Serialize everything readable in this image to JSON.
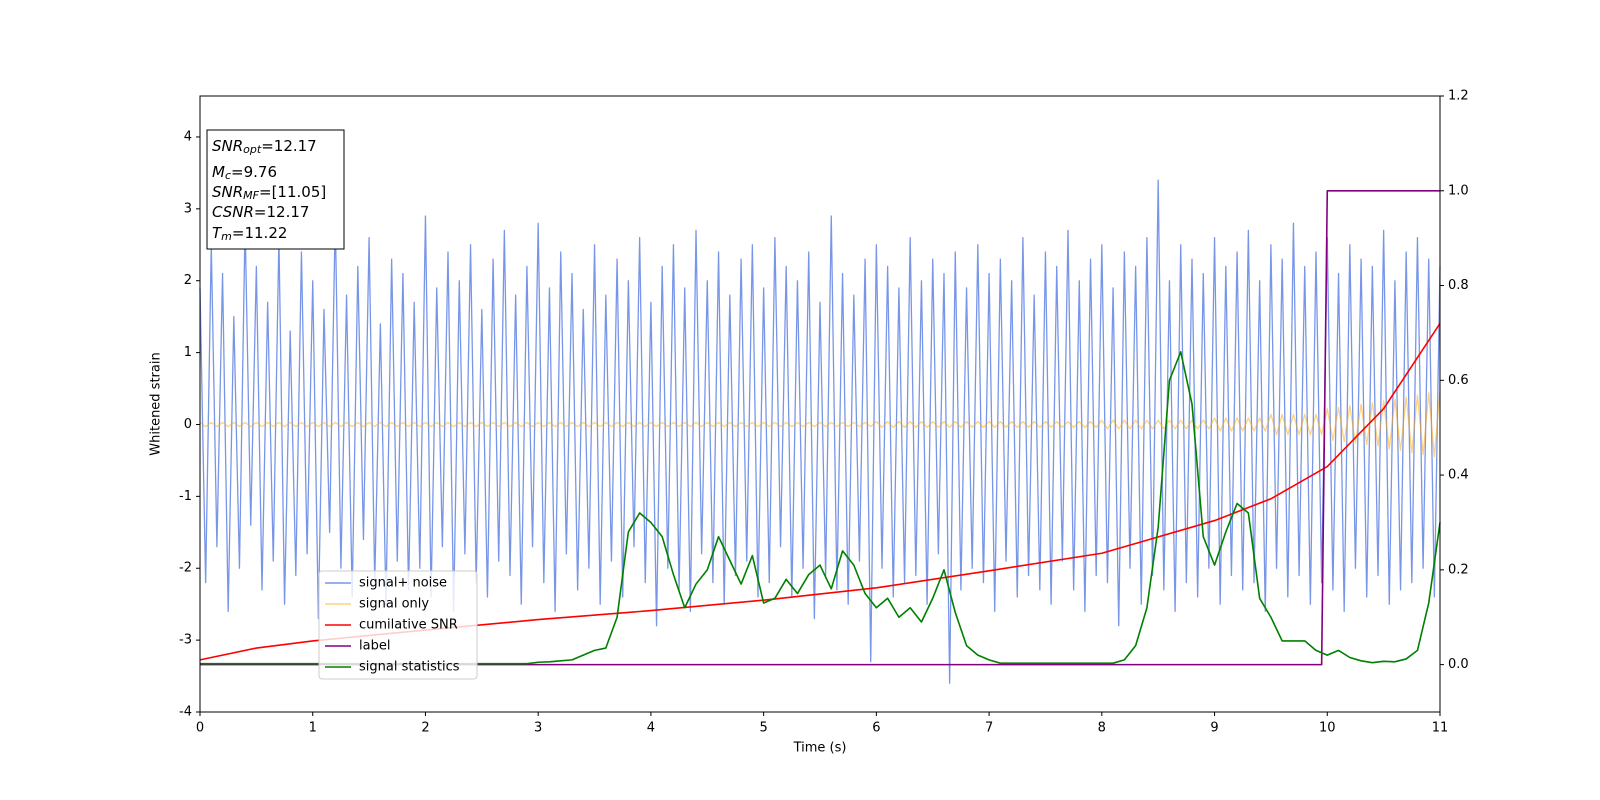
{
  "chart_data": {
    "type": "line",
    "xlabel": "Time (s)",
    "ylabel": "Whitened strain",
    "xlim": [
      0,
      11
    ],
    "xticks": [
      0,
      1,
      2,
      3,
      4,
      5,
      6,
      7,
      8,
      9,
      10,
      11
    ],
    "ylim": [
      -4,
      4.57
    ],
    "yticks": [
      -4,
      -3,
      -2,
      -1,
      0,
      1,
      2,
      3,
      4
    ],
    "y2lim": [
      -0.1,
      1.2
    ],
    "y2ticks": [
      {
        "value": 0,
        "label": "0.0"
      },
      {
        "value": 0.2,
        "label": "0.2"
      },
      {
        "value": 0.4,
        "label": "0.4"
      },
      {
        "value": 0.6,
        "label": "0.6"
      },
      {
        "value": 0.8,
        "label": "0.8"
      },
      {
        "value": 1,
        "label": "1.0"
      },
      {
        "value": 1.2,
        "label": "1.2"
      }
    ],
    "legend": "lower left",
    "annotations": [
      {
        "text": "SNR",
        "sub": "opt",
        "rest": "=12.17"
      },
      {
        "text": "M",
        "sub": "c",
        "rest": "=9.76"
      },
      {
        "text": "SNR",
        "sub": "MF",
        "rest": "=[11.05]"
      },
      {
        "text": "CSNR",
        "rest": "=12.17"
      },
      {
        "text": "T",
        "sub": "m",
        "rest": "=11.22"
      }
    ],
    "x": [
      0,
      0.05,
      0.1,
      0.15,
      0.2,
      0.25,
      0.3,
      0.35,
      0.4,
      0.45,
      0.5,
      0.55,
      0.6,
      0.65,
      0.7,
      0.75,
      0.8,
      0.85,
      0.9,
      0.95,
      1,
      1.05,
      1.1,
      1.15,
      1.2,
      1.25,
      1.3,
      1.35,
      1.4,
      1.45,
      1.5,
      1.55,
      1.6,
      1.65,
      1.7,
      1.75,
      1.8,
      1.85,
      1.9,
      1.95,
      2,
      2.05,
      2.1,
      2.15,
      2.2,
      2.25,
      2.3,
      2.35,
      2.4,
      2.45,
      2.5,
      2.55,
      2.6,
      2.65,
      2.7,
      2.75,
      2.8,
      2.85,
      2.9,
      2.95,
      3,
      3.05,
      3.1,
      3.15,
      3.2,
      3.25,
      3.3,
      3.35,
      3.4,
      3.45,
      3.5,
      3.55,
      3.6,
      3.65,
      3.7,
      3.75,
      3.8,
      3.85,
      3.9,
      3.95,
      4,
      4.05,
      4.1,
      4.15,
      4.2,
      4.25,
      4.3,
      4.35,
      4.4,
      4.45,
      4.5,
      4.55,
      4.6,
      4.65,
      4.7,
      4.75,
      4.8,
      4.85,
      4.9,
      4.95,
      5,
      5.05,
      5.1,
      5.15,
      5.2,
      5.25,
      5.3,
      5.35,
      5.4,
      5.45,
      5.5,
      5.55,
      5.6,
      5.65,
      5.7,
      5.75,
      5.8,
      5.85,
      5.9,
      5.95,
      6,
      6.05,
      6.1,
      6.15,
      6.2,
      6.25,
      6.3,
      6.35,
      6.4,
      6.45,
      6.5,
      6.55,
      6.6,
      6.65,
      6.7,
      6.75,
      6.8,
      6.85,
      6.9,
      6.95,
      7,
      7.05,
      7.1,
      7.15,
      7.2,
      7.25,
      7.3,
      7.35,
      7.4,
      7.45,
      7.5,
      7.55,
      7.6,
      7.65,
      7.7,
      7.75,
      7.8,
      7.85,
      7.9,
      7.95,
      8,
      8.05,
      8.1,
      8.15,
      8.2,
      8.25,
      8.3,
      8.35,
      8.4,
      8.45,
      8.5,
      8.55,
      8.6,
      8.65,
      8.7,
      8.75,
      8.8,
      8.85,
      8.9,
      8.95,
      9,
      9.05,
      9.1,
      9.15,
      9.2,
      9.25,
      9.3,
      9.35,
      9.4,
      9.45,
      9.5,
      9.55,
      9.6,
      9.65,
      9.7,
      9.75,
      9.8,
      9.85,
      9.9,
      9.95,
      10,
      10.05,
      10.1,
      10.15,
      10.2,
      10.25,
      10.3,
      10.35,
      10.4,
      10.45,
      10.5,
      10.55,
      10.6,
      10.65,
      10.7,
      10.75,
      10.8,
      10.85,
      10.9,
      10.95,
      11
    ],
    "series": [
      {
        "name": "signal+ noise",
        "color": "#7896e8",
        "axis": "y",
        "values": [
          1.9,
          -2.2,
          2.5,
          -1.7,
          2.1,
          -2.6,
          1.5,
          -2.0,
          2.8,
          -1.4,
          2.2,
          -2.3,
          1.7,
          -1.9,
          2.6,
          -2.5,
          1.3,
          -2.1,
          2.4,
          -1.8,
          2.0,
          -2.7,
          1.6,
          -1.5,
          2.9,
          -2.0,
          1.8,
          -2.4,
          2.2,
          -1.6,
          2.6,
          -2.2,
          1.4,
          -2.5,
          2.3,
          -1.9,
          2.1,
          -2.3,
          1.7,
          -2.0,
          2.9,
          -2.4,
          1.9,
          -1.7,
          2.4,
          -2.6,
          2.0,
          -1.8,
          2.5,
          -2.2,
          1.6,
          -2.4,
          2.3,
          -1.9,
          2.7,
          -2.1,
          1.8,
          -2.5,
          2.2,
          -1.7,
          2.8,
          -2.2,
          1.9,
          -2.6,
          2.4,
          -1.8,
          2.1,
          -2.3,
          1.6,
          -2.0,
          2.5,
          -2.5,
          1.8,
          -1.9,
          2.3,
          -2.4,
          2.0,
          -1.7,
          2.6,
          -2.2,
          1.7,
          -2.8,
          2.2,
          -2.0,
          2.5,
          -2.3,
          1.9,
          -2.6,
          2.7,
          -1.8,
          2.0,
          -2.2,
          2.4,
          -2.5,
          1.8,
          -2.1,
          2.3,
          -1.9,
          2.5,
          -2.4,
          1.9,
          -2.2,
          2.6,
          -1.7,
          2.2,
          -2.4,
          2.0,
          -2.0,
          2.4,
          -2.7,
          1.7,
          -2.1,
          2.9,
          -2.3,
          2.1,
          -2.5,
          1.8,
          -1.9,
          2.3,
          -3.3,
          2.5,
          -2.0,
          2.2,
          -2.4,
          1.9,
          -2.2,
          2.6,
          -2.1,
          2.0,
          -2.5,
          2.3,
          -1.8,
          2.1,
          -3.6,
          2.4,
          -2.3,
          1.9,
          -2.0,
          2.5,
          -2.2,
          2.1,
          -2.6,
          2.3,
          -1.9,
          2.0,
          -2.4,
          2.6,
          -2.1,
          1.8,
          -2.3,
          2.4,
          -2.5,
          2.2,
          -1.9,
          2.7,
          -2.3,
          2.0,
          -2.6,
          2.3,
          -2.1,
          2.5,
          -2.2,
          1.9,
          -2.8,
          2.4,
          -2.0,
          2.2,
          -2.5,
          2.6,
          -2.1,
          3.4,
          -2.3,
          2.0,
          -2.6,
          2.5,
          -2.2,
          2.3,
          -2.4,
          2.1,
          -2.0,
          2.6,
          -2.5,
          2.2,
          -2.1,
          2.4,
          -2.3,
          2.7,
          -2.2,
          2.0,
          -2.6,
          2.5,
          -2.0,
          2.3,
          -2.4,
          2.8,
          -2.1,
          2.2,
          -2.5,
          2.4,
          -2.2,
          2.6,
          -2.3,
          2.1,
          -2.6,
          2.5,
          -2.0,
          2.3,
          -2.4,
          2.2,
          -2.1,
          2.7,
          -2.5,
          2.0,
          -2.3,
          2.4,
          -2.2,
          2.6,
          -2.0,
          2.3,
          -2.4,
          2.2
        ]
      },
      {
        "name": "signal only",
        "color": "#ffa500",
        "axis": "y",
        "values": [
          0.03,
          -0.03,
          0.03,
          -0.03,
          0.03,
          -0.03,
          0.03,
          -0.03,
          0.03,
          -0.03,
          0.03,
          -0.03,
          0.03,
          -0.03,
          0.03,
          -0.03,
          0.03,
          -0.03,
          0.03,
          -0.03,
          0.03,
          -0.03,
          0.03,
          -0.03,
          0.03,
          -0.03,
          0.03,
          -0.03,
          0.03,
          -0.03,
          0.03,
          -0.03,
          0.03,
          -0.03,
          0.03,
          -0.03,
          0.03,
          -0.03,
          0.03,
          -0.03,
          0.03,
          -0.03,
          0.03,
          -0.03,
          0.03,
          -0.03,
          0.03,
          -0.03,
          0.03,
          -0.03,
          0.03,
          -0.03,
          0.03,
          -0.03,
          0.03,
          -0.03,
          0.03,
          -0.03,
          0.03,
          -0.03,
          0.03,
          -0.03,
          0.03,
          -0.03,
          0.03,
          -0.03,
          0.03,
          -0.03,
          0.03,
          -0.03,
          0.03,
          -0.03,
          0.03,
          -0.03,
          0.03,
          -0.03,
          0.03,
          -0.03,
          0.03,
          -0.03,
          0.03,
          -0.03,
          0.03,
          -0.03,
          0.03,
          -0.03,
          0.03,
          -0.03,
          0.03,
          -0.03,
          0.03,
          -0.03,
          0.03,
          -0.03,
          0.03,
          -0.03,
          0.03,
          -0.03,
          0.03,
          -0.03,
          0.03,
          -0.03,
          0.03,
          -0.03,
          0.03,
          -0.03,
          0.03,
          -0.03,
          0.03,
          -0.03,
          0.03,
          -0.03,
          0.03,
          -0.03,
          0.03,
          -0.03,
          0.03,
          -0.03,
          0.03,
          -0.03,
          0.04,
          -0.04,
          0.04,
          -0.04,
          0.04,
          -0.04,
          0.04,
          -0.04,
          0.04,
          -0.04,
          0.04,
          -0.04,
          0.04,
          -0.04,
          0.04,
          -0.04,
          0.04,
          -0.04,
          0.04,
          -0.04,
          0.04,
          -0.04,
          0.04,
          -0.04,
          0.04,
          -0.04,
          0.04,
          -0.04,
          0.04,
          -0.04,
          0.04,
          -0.04,
          0.04,
          -0.04,
          0.04,
          -0.04,
          0.04,
          -0.04,
          0.04,
          -0.04,
          0.06,
          -0.06,
          0.06,
          -0.06,
          0.06,
          -0.06,
          0.06,
          -0.06,
          0.06,
          -0.06,
          0.06,
          -0.06,
          0.06,
          -0.06,
          0.06,
          -0.06,
          0.06,
          -0.06,
          0.06,
          -0.06,
          0.09,
          -0.09,
          0.09,
          -0.09,
          0.09,
          -0.09,
          0.09,
          -0.09,
          0.09,
          -0.09,
          0.14,
          -0.14,
          0.14,
          -0.14,
          0.14,
          -0.14,
          0.14,
          -0.14,
          0.14,
          -0.14,
          0.22,
          -0.22,
          0.24,
          -0.24,
          0.26,
          -0.26,
          0.28,
          -0.28,
          0.3,
          -0.3,
          0.33,
          -0.34,
          0.35,
          -0.36,
          0.38,
          -0.39,
          0.41,
          -0.42,
          0.44,
          -0.45,
          0.47
        ]
      },
      {
        "name": "cumilative SNR",
        "color": "#ff0000",
        "axis": "y2",
        "x": [
          0,
          0.5,
          1,
          2,
          3,
          4,
          5,
          6,
          7,
          8,
          9,
          9.5,
          10,
          10.5,
          11
        ],
        "values": [
          0.01,
          0.035,
          0.05,
          0.073,
          0.095,
          0.114,
          0.136,
          0.162,
          0.198,
          0.235,
          0.304,
          0.35,
          0.418,
          0.54,
          0.72
        ]
      },
      {
        "name": "label",
        "color": "#800080",
        "axis": "y2",
        "x": [
          0,
          9.95,
          10,
          11
        ],
        "values": [
          0,
          0,
          1,
          1
        ]
      },
      {
        "name": "signal statistics",
        "color": "#008000",
        "axis": "y2",
        "x": [
          0,
          0.1,
          0.2,
          0.3,
          0.4,
          0.5,
          0.6,
          0.7,
          0.8,
          0.9,
          1,
          1.1,
          1.2,
          1.3,
          1.4,
          1.5,
          1.6,
          1.7,
          1.8,
          1.9,
          2,
          2.1,
          2.2,
          2.3,
          2.4,
          2.5,
          2.6,
          2.7,
          2.8,
          2.9,
          3,
          3.1,
          3.2,
          3.3,
          3.4,
          3.5,
          3.6,
          3.7,
          3.8,
          3.9,
          4,
          4.1,
          4.2,
          4.3,
          4.4,
          4.5,
          4.6,
          4.7,
          4.8,
          4.9,
          5,
          5.1,
          5.2,
          5.3,
          5.4,
          5.5,
          5.6,
          5.7,
          5.8,
          5.9,
          6,
          6.1,
          6.2,
          6.3,
          6.4,
          6.5,
          6.6,
          6.7,
          6.8,
          6.9,
          7,
          7.1,
          7.2,
          7.3,
          7.4,
          7.5,
          7.6,
          7.7,
          7.8,
          7.9,
          8,
          8.1,
          8.2,
          8.3,
          8.4,
          8.5,
          8.6,
          8.7,
          8.8,
          8.9,
          9,
          9.1,
          9.2,
          9.3,
          9.4,
          9.5,
          9.6,
          9.7,
          9.8,
          9.9,
          10,
          10.1,
          10.2,
          10.3,
          10.4,
          10.5,
          10.6,
          10.7,
          10.8,
          10.9,
          11
        ],
        "values": [
          0.002,
          0.002,
          0.002,
          0.002,
          0.002,
          0.002,
          0.002,
          0.002,
          0.002,
          0.002,
          0.002,
          0.002,
          0.002,
          0.002,
          0.002,
          0.002,
          0.002,
          0.002,
          0.002,
          0.002,
          0.002,
          0.002,
          0.002,
          0.002,
          0.002,
          0.002,
          0.002,
          0.002,
          0.002,
          0.002,
          0.005,
          0.006,
          0.008,
          0.01,
          0.02,
          0.03,
          0.035,
          0.1,
          0.28,
          0.32,
          0.3,
          0.27,
          0.19,
          0.12,
          0.17,
          0.2,
          0.27,
          0.22,
          0.17,
          0.23,
          0.13,
          0.14,
          0.18,
          0.15,
          0.19,
          0.21,
          0.16,
          0.24,
          0.21,
          0.15,
          0.12,
          0.14,
          0.1,
          0.12,
          0.09,
          0.14,
          0.2,
          0.11,
          0.04,
          0.02,
          0.01,
          0.003,
          0.003,
          0.003,
          0.003,
          0.003,
          0.003,
          0.003,
          0.003,
          0.003,
          0.003,
          0.003,
          0.01,
          0.04,
          0.12,
          0.29,
          0.6,
          0.66,
          0.55,
          0.27,
          0.21,
          0.28,
          0.34,
          0.32,
          0.14,
          0.1,
          0.05,
          0.05,
          0.05,
          0.03,
          0.02,
          0.03,
          0.015,
          0.008,
          0.004,
          0.007,
          0.006,
          0.012,
          0.03,
          0.13,
          0.3
        ]
      }
    ]
  }
}
